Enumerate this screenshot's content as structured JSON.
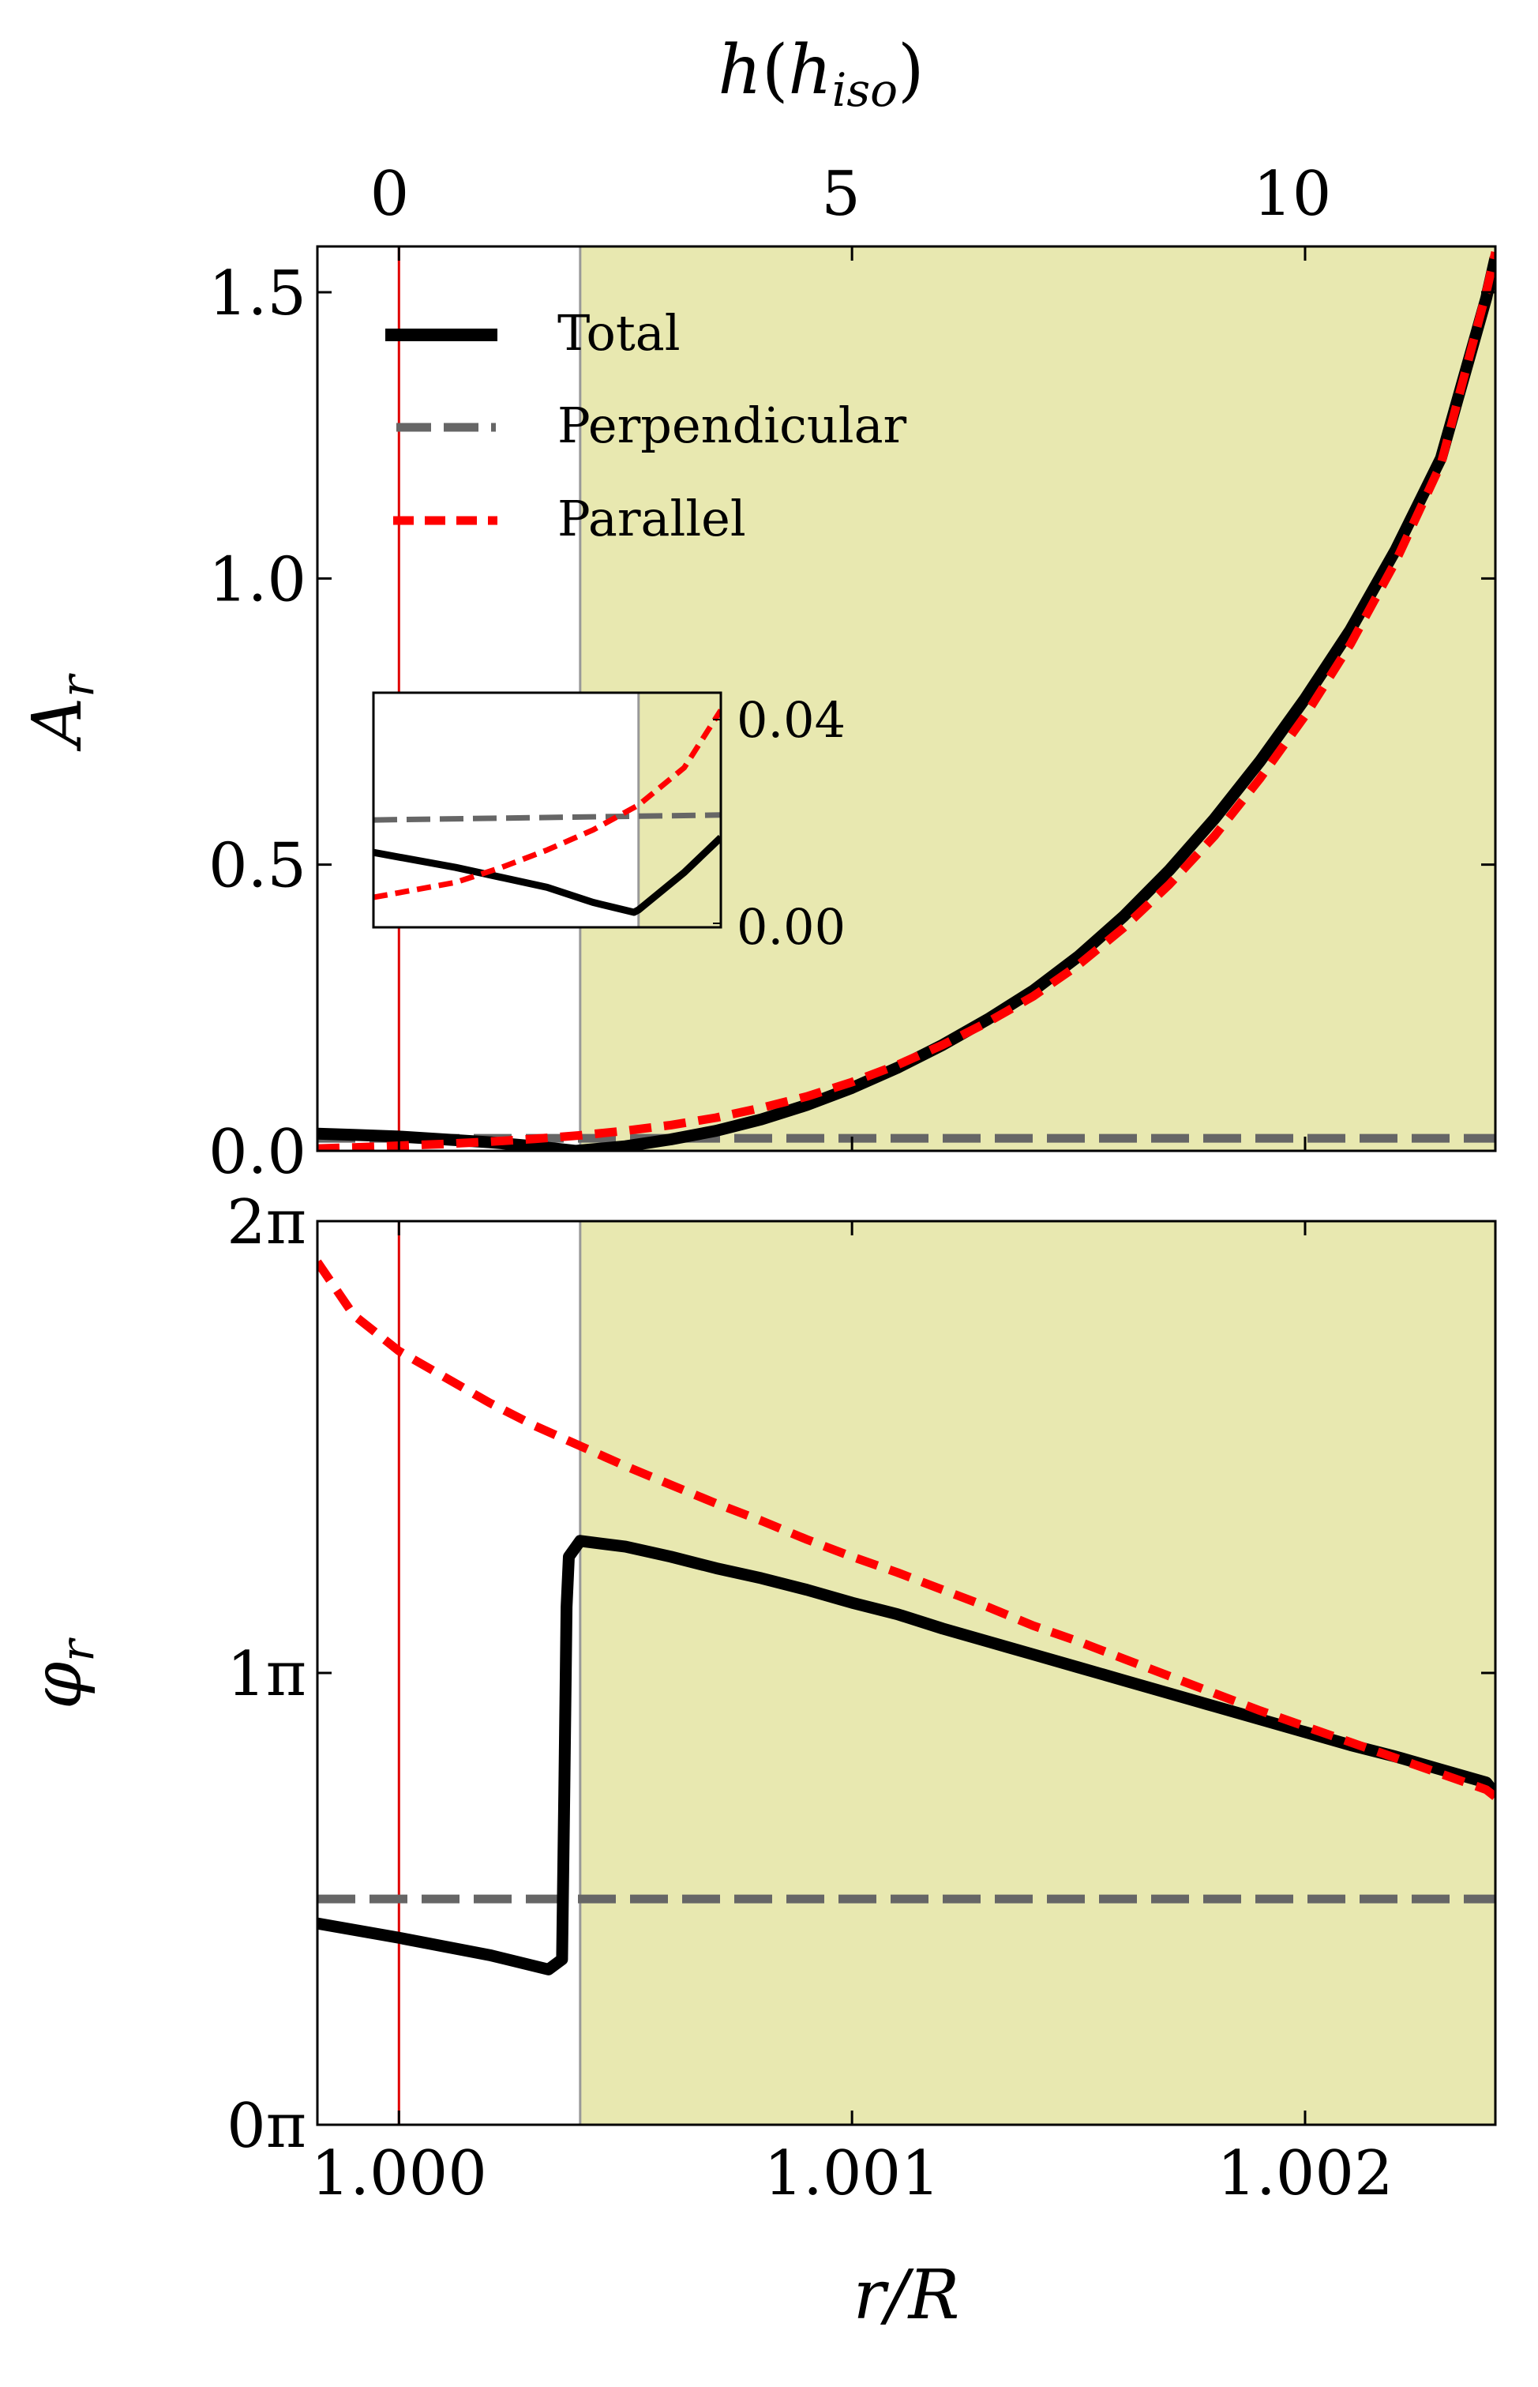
{
  "top_axis": {
    "label_base": "h",
    "label_inner": "h",
    "label_sub": "iso",
    "ticks": [
      "0",
      "5",
      "10"
    ],
    "tick_values": [
      0,
      5,
      10
    ],
    "range": [
      -0.8,
      12.25
    ]
  },
  "panel_top": {
    "ylabel": "A",
    "ylabel_sub": "r",
    "ytick_labels": [
      "0.0",
      "0.5",
      "1.0",
      "1.5"
    ],
    "ytick_values": [
      0,
      0.5,
      1.0,
      1.5
    ],
    "ylim": [
      0,
      1.58
    ]
  },
  "panel_bottom": {
    "ylabel": "φ",
    "ylabel_sub": "r",
    "ytick_labels": [
      "0π",
      "1π",
      "2π"
    ],
    "ytick_values": [
      0,
      3.14159,
      6.28318
    ],
    "ylim": [
      0,
      6.28318
    ]
  },
  "xaxis": {
    "label": "r/R",
    "tick_labels": [
      "1.000",
      "1.001",
      "1.002"
    ],
    "tick_values": [
      1.0,
      1.001,
      1.002
    ],
    "xlim": [
      0.99982,
      1.00242
    ]
  },
  "legend": {
    "total": "Total",
    "perpendicular": "Perpendicular",
    "parallel": "Parallel"
  },
  "inset": {
    "ytick_labels": [
      "0.04",
      "0.00"
    ],
    "ylim": [
      -0.003,
      0.044
    ]
  },
  "colors": {
    "total": "#000000",
    "perpendicular": "#666666",
    "parallel": "#ff0000",
    "shade": "#e8e8b0",
    "surface_line": "#e00000",
    "boundary_line": "#999999"
  },
  "chart_data": [
    {
      "type": "line",
      "panel": "top",
      "title": "",
      "xlabel": "",
      "ylabel": "A_r",
      "xlim": [
        0.99982,
        1.00242
      ],
      "ylim": [
        0,
        1.58
      ],
      "vertical_lines": [
        1.0,
        1.0004
      ],
      "shaded_region_x": [
        1.0004,
        1.00242
      ],
      "legend": "top-left",
      "series": [
        {
          "name": "Total",
          "x": [
            0.99982,
            0.9999,
            1.0,
            1.0001,
            1.0002,
            1.0003,
            1.00039,
            1.0005,
            1.0006,
            1.0007,
            1.0008,
            1.0009,
            1.001,
            1.0011,
            1.0012,
            1.0013,
            1.0014,
            1.0015,
            1.0016,
            1.0017,
            1.0018,
            1.0019,
            1.002,
            1.0021,
            1.0022,
            1.0023,
            1.0024,
            1.00242
          ],
          "values": [
            0.03,
            0.028,
            0.025,
            0.02,
            0.015,
            0.008,
            0.0,
            0.008,
            0.02,
            0.035,
            0.055,
            0.08,
            0.11,
            0.145,
            0.185,
            0.23,
            0.28,
            0.34,
            0.41,
            0.49,
            0.58,
            0.68,
            0.79,
            0.91,
            1.05,
            1.21,
            1.49,
            1.56
          ]
        },
        {
          "name": "Perpendicular",
          "x": [
            0.99982,
            1.00242
          ],
          "values": [
            0.022,
            0.022
          ]
        },
        {
          "name": "Parallel",
          "x": [
            0.99982,
            0.9999,
            1.0,
            1.0001,
            1.0002,
            1.0003,
            1.0004,
            1.0005,
            1.0006,
            1.0007,
            1.0008,
            1.0009,
            1.001,
            1.0011,
            1.0012,
            1.0013,
            1.0014,
            1.0015,
            1.0016,
            1.0017,
            1.0018,
            1.0019,
            1.002,
            1.0021,
            1.0022,
            1.0023,
            1.0024,
            1.00242
          ],
          "values": [
            0.004,
            0.006,
            0.009,
            0.012,
            0.016,
            0.021,
            0.027,
            0.035,
            0.045,
            0.058,
            0.075,
            0.095,
            0.12,
            0.15,
            0.185,
            0.225,
            0.27,
            0.325,
            0.39,
            0.465,
            0.55,
            0.65,
            0.76,
            0.885,
            1.03,
            1.2,
            1.5,
            1.57
          ]
        }
      ]
    },
    {
      "type": "line",
      "panel": "inset",
      "title": "",
      "xlabel": "",
      "ylabel": "",
      "xlim": [
        0.99982,
        1.00058
      ],
      "ylim": [
        -0.003,
        0.044
      ],
      "series": [
        {
          "name": "Total",
          "x": [
            0.99982,
            1.0,
            1.0001,
            1.0002,
            1.0003,
            1.00039,
            1.0004,
            1.0005,
            1.00058
          ],
          "values": [
            0.012,
            0.009,
            0.007,
            0.005,
            0.002,
            0.0,
            0.0005,
            0.008,
            0.015
          ]
        },
        {
          "name": "Perpendicular",
          "x": [
            0.99982,
            1.00058
          ],
          "values": [
            0.0185,
            0.0195
          ]
        },
        {
          "name": "Parallel",
          "x": [
            0.99982,
            1.0,
            1.0001,
            1.0002,
            1.0003,
            1.0004,
            1.0005,
            1.00058
          ],
          "values": [
            0.003,
            0.006,
            0.009,
            0.0125,
            0.0165,
            0.0215,
            0.029,
            0.0405
          ]
        }
      ]
    },
    {
      "type": "line",
      "panel": "bottom",
      "title": "",
      "xlabel": "r/R",
      "ylabel": "φ_r",
      "xlim": [
        0.99982,
        1.00242
      ],
      "ylim": [
        0,
        6.28318
      ],
      "vertical_lines": [
        1.0,
        1.0004
      ],
      "shaded_region_x": [
        1.0004,
        1.00242
      ],
      "series": [
        {
          "name": "Total",
          "x": [
            0.99982,
            1.0,
            1.0002,
            1.00033,
            1.00036,
            1.000365,
            1.00037,
            1.000375,
            1.0004,
            1.0005,
            1.0006,
            1.0007,
            1.0008,
            1.0009,
            1.001,
            1.0011,
            1.0012,
            1.0013,
            1.0014,
            1.0015,
            1.0016,
            1.0017,
            1.0018,
            1.0019,
            1.002,
            1.0021,
            1.0022,
            1.0023,
            1.0024,
            1.00242
          ],
          "values": [
            1.4,
            1.3,
            1.18,
            1.08,
            1.15,
            2.3,
            3.6,
            3.95,
            4.06,
            4.02,
            3.95,
            3.87,
            3.8,
            3.72,
            3.63,
            3.55,
            3.45,
            3.36,
            3.27,
            3.18,
            3.09,
            3.0,
            2.91,
            2.82,
            2.73,
            2.64,
            2.56,
            2.47,
            2.38,
            2.3
          ]
        },
        {
          "name": "Perpendicular",
          "x": [
            0.99982,
            1.00242
          ],
          "values": [
            1.57,
            1.57
          ]
        },
        {
          "name": "Parallel",
          "x": [
            0.99982,
            0.9999,
            1.0,
            1.0001,
            1.0002,
            1.0003,
            1.0004,
            1.0005,
            1.0006,
            1.0007,
            1.0008,
            1.0009,
            1.001,
            1.0011,
            1.0012,
            1.0013,
            1.0014,
            1.0015,
            1.0016,
            1.0017,
            1.0018,
            1.0019,
            1.002,
            1.0021,
            1.0022,
            1.0023,
            1.0024,
            1.00242
          ],
          "values": [
            6.0,
            5.63,
            5.38,
            5.2,
            5.02,
            4.86,
            4.72,
            4.58,
            4.45,
            4.32,
            4.2,
            4.07,
            3.95,
            3.84,
            3.72,
            3.6,
            3.47,
            3.36,
            3.24,
            3.12,
            3.0,
            2.88,
            2.77,
            2.66,
            2.55,
            2.44,
            2.33,
            2.28
          ]
        }
      ]
    }
  ]
}
